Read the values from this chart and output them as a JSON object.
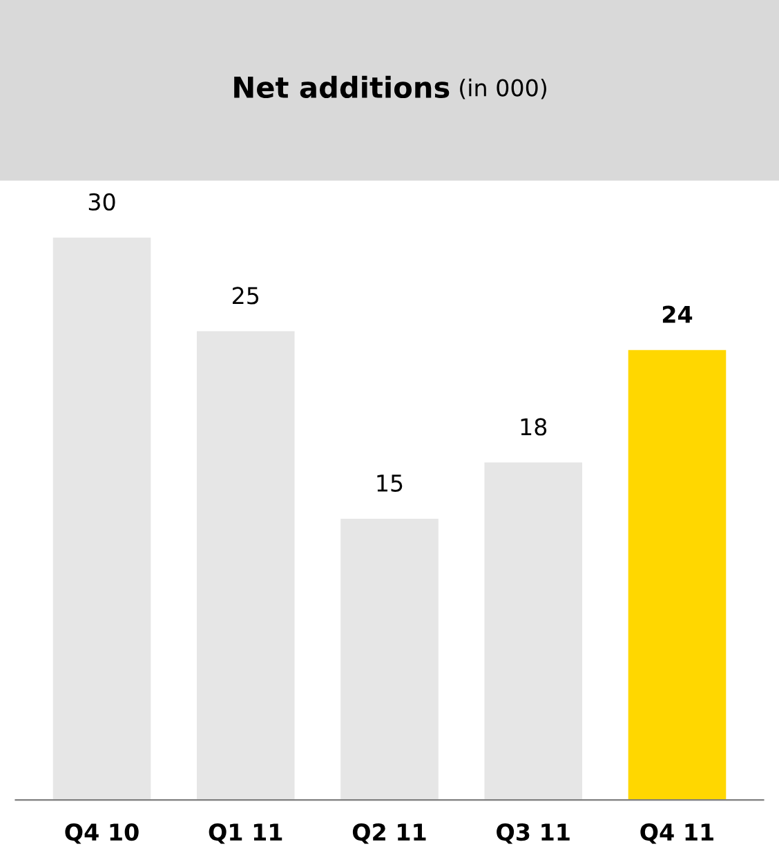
{
  "chart_data": {
    "type": "bar",
    "title": "Net additions",
    "subtitle": "(in 000)",
    "categories": [
      "Q4 10",
      "Q1 11",
      "Q2 11",
      "Q3 11",
      "Q4 11"
    ],
    "values": [
      30,
      25,
      15,
      18,
      24
    ],
    "colors": [
      "#e6e6e6",
      "#e6e6e6",
      "#e6e6e6",
      "#e6e6e6",
      "#ffd700"
    ],
    "data_labels": true,
    "grid": false
  }
}
